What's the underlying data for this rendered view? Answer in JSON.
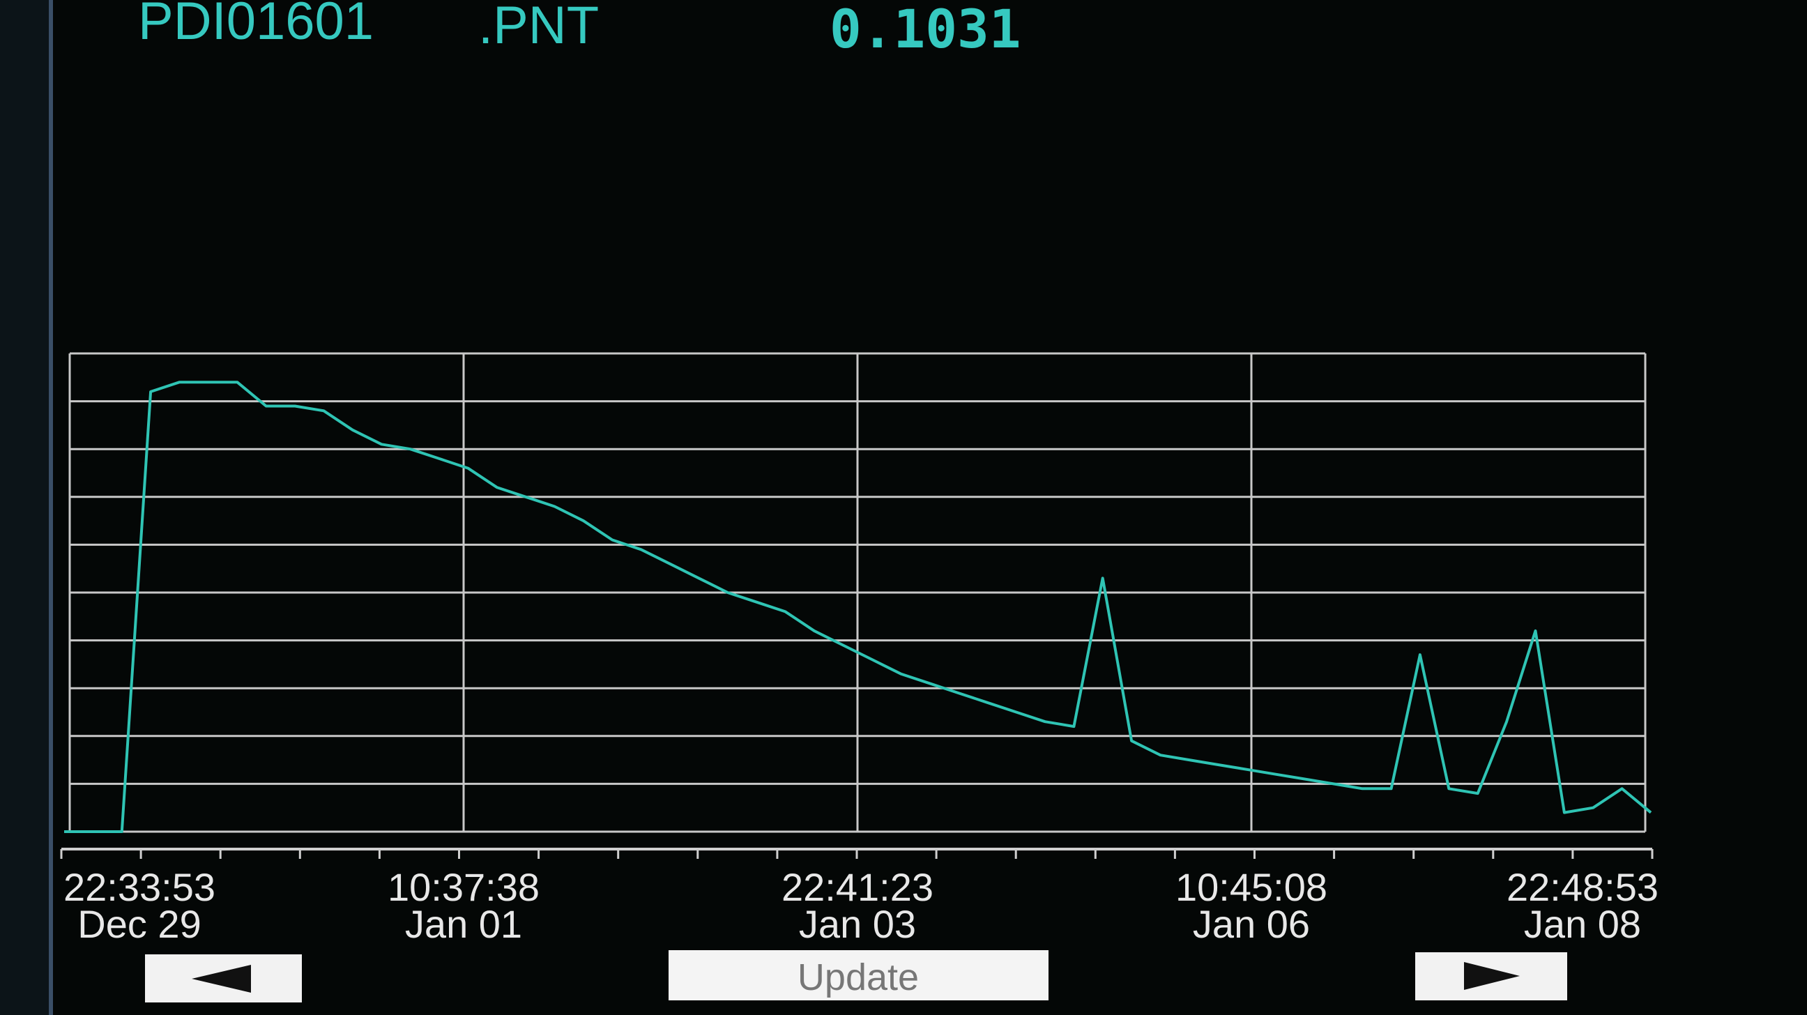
{
  "header": {
    "tag": "PDI01601",
    "suffix": ".PNT",
    "value": "0.1031"
  },
  "trend": {
    "type": "line",
    "color": "#2fc4b4",
    "ylim": [
      0,
      10
    ],
    "grid_rows": 10,
    "grid_cols": 4,
    "values": [
      0,
      0,
      0,
      9.2,
      9.4,
      9.4,
      9.4,
      8.9,
      8.9,
      8.8,
      8.4,
      8.1,
      8.0,
      7.8,
      7.6,
      7.2,
      7.0,
      6.8,
      6.5,
      6.1,
      5.9,
      5.6,
      5.3,
      5.0,
      4.8,
      4.6,
      4.2,
      3.9,
      3.6,
      3.3,
      3.1,
      2.9,
      2.7,
      2.5,
      2.3,
      2.2,
      5.3,
      1.9,
      1.6,
      1.5,
      1.4,
      1.3,
      1.2,
      1.1,
      1.0,
      0.9,
      0.9,
      3.7,
      0.9,
      0.8,
      2.3,
      4.2,
      0.4,
      0.5,
      0.9,
      0.4
    ],
    "x_labels": [
      {
        "time": "22:33:53",
        "date": "Dec 29"
      },
      {
        "time": "10:37:38",
        "date": "Jan 01"
      },
      {
        "time": "22:41:23",
        "date": "Jan 03"
      },
      {
        "time": "10:45:08",
        "date": "Jan 06"
      },
      {
        "time": "22:48:53",
        "date": "Jan 08"
      }
    ]
  },
  "buttons": {
    "update": "Update"
  }
}
